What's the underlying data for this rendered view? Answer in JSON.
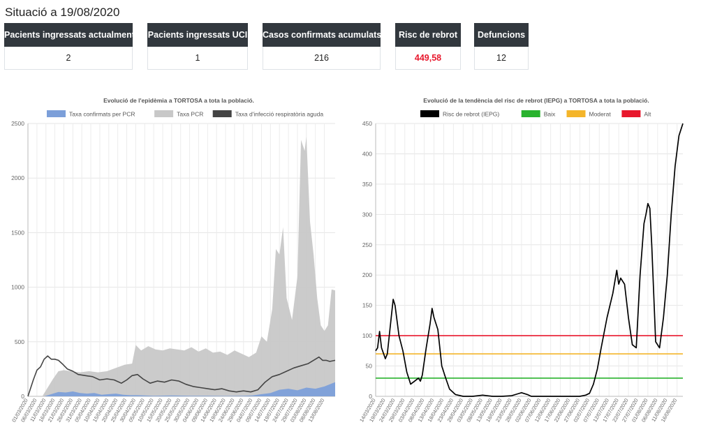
{
  "page_title": "Situació a 19/08/2020",
  "cards": [
    {
      "label": "Pacients ingressats actualment",
      "value": "2"
    },
    {
      "label": "Pacients ingressats UCI",
      "value": "1"
    },
    {
      "label": "Casos confirmats acumulats",
      "value": "216"
    },
    {
      "label": "Risc de rebrot",
      "value": "449,58"
    },
    {
      "label": "Defuncions",
      "value": "12"
    }
  ],
  "colors": {
    "card_header": "#32383e",
    "risk_value": "#e8172c"
  },
  "chart_data": [
    {
      "type": "area",
      "title": "Evolució de l'epidèmia a TORTOSA a tota la població.",
      "legend": [
        {
          "name": "Taxa confirmats per PCR",
          "color": "#7c9fd9"
        },
        {
          "name": "Taxa PCR",
          "color": "#c8c8c8"
        },
        {
          "name": "Taxa d'infecció respiratòria aguda",
          "color": "#444444"
        }
      ],
      "legend_position": "top",
      "grid": true,
      "ylim": [
        0,
        2500
      ],
      "y_ticks": [
        0,
        500,
        1000,
        1500,
        2000,
        2500
      ],
      "x_tick_labels": [
        "01/03/2020",
        "06/03/2020",
        "11/03/2020",
        "16/03/2020",
        "21/03/2020",
        "26/03/2020",
        "31/03/2020",
        "05/04/2020",
        "10/04/2020",
        "15/04/2020",
        "20/04/2020",
        "25/04/2020",
        "30/04/2020",
        "05/05/2020",
        "10/05/2020",
        "15/05/2020",
        "20/05/2020",
        "25/05/2020",
        "30/05/2020",
        "04/06/2020",
        "09/06/2020",
        "14/06/2020",
        "19/06/2020",
        "24/06/2020",
        "29/06/2020",
        "04/07/2020",
        "09/07/2020",
        "14/07/2020",
        "19/07/2020",
        "24/07/2020",
        "29/07/2020",
        "03/08/2020",
        "08/08/2020",
        "13/08/2020"
      ],
      "x_start": "01/03/2020",
      "x_end": "19/08/2020",
      "series": [
        {
          "name": "Taxa PCR",
          "style": "area",
          "points": [
            [
              "01/03/2020",
              0
            ],
            [
              "05/03/2020",
              0
            ],
            [
              "09/03/2020",
              0
            ],
            [
              "12/03/2020",
              80
            ],
            [
              "15/03/2020",
              160
            ],
            [
              "18/03/2020",
              230
            ],
            [
              "21/03/2020",
              240
            ],
            [
              "25/03/2020",
              230
            ],
            [
              "30/03/2020",
              220
            ],
            [
              "04/04/2020",
              230
            ],
            [
              "09/04/2020",
              220
            ],
            [
              "14/04/2020",
              230
            ],
            [
              "19/04/2020",
              260
            ],
            [
              "24/04/2020",
              290
            ],
            [
              "28/04/2020",
              300
            ],
            [
              "30/04/2020",
              470
            ],
            [
              "03/05/2020",
              420
            ],
            [
              "07/05/2020",
              460
            ],
            [
              "11/05/2020",
              430
            ],
            [
              "15/05/2020",
              420
            ],
            [
              "19/05/2020",
              440
            ],
            [
              "23/05/2020",
              430
            ],
            [
              "27/05/2020",
              420
            ],
            [
              "31/05/2020",
              450
            ],
            [
              "04/06/2020",
              410
            ],
            [
              "08/06/2020",
              440
            ],
            [
              "12/06/2020",
              400
            ],
            [
              "16/06/2020",
              410
            ],
            [
              "20/06/2020",
              380
            ],
            [
              "24/06/2020",
              420
            ],
            [
              "28/06/2020",
              390
            ],
            [
              "02/07/2020",
              360
            ],
            [
              "06/07/2020",
              400
            ],
            [
              "09/07/2020",
              550
            ],
            [
              "12/07/2020",
              500
            ],
            [
              "15/07/2020",
              800
            ],
            [
              "17/07/2020",
              1350
            ],
            [
              "19/07/2020",
              1300
            ],
            [
              "21/07/2020",
              1550
            ],
            [
              "23/07/2020",
              900
            ],
            [
              "26/07/2020",
              700
            ],
            [
              "29/07/2020",
              1100
            ],
            [
              "31/07/2020",
              2350
            ],
            [
              "02/08/2020",
              2250
            ],
            [
              "03/08/2020",
              2380
            ],
            [
              "05/08/2020",
              1600
            ],
            [
              "07/08/2020",
              1300
            ],
            [
              "09/08/2020",
              900
            ],
            [
              "11/08/2020",
              650
            ],
            [
              "13/08/2020",
              600
            ],
            [
              "15/08/2020",
              650
            ],
            [
              "17/08/2020",
              980
            ],
            [
              "19/08/2020",
              970
            ]
          ]
        },
        {
          "name": "Taxa confirmats per PCR",
          "style": "area",
          "points": [
            [
              "01/03/2020",
              0
            ],
            [
              "10/03/2020",
              0
            ],
            [
              "14/03/2020",
              20
            ],
            [
              "18/03/2020",
              40
            ],
            [
              "22/03/2020",
              35
            ],
            [
              "26/03/2020",
              45
            ],
            [
              "30/03/2020",
              30
            ],
            [
              "03/04/2020",
              25
            ],
            [
              "07/04/2020",
              30
            ],
            [
              "11/04/2020",
              15
            ],
            [
              "15/04/2020",
              20
            ],
            [
              "19/04/2020",
              25
            ],
            [
              "23/04/2020",
              15
            ],
            [
              "27/04/2020",
              10
            ],
            [
              "01/05/2020",
              10
            ],
            [
              "10/05/2020",
              5
            ],
            [
              "20/05/2020",
              8
            ],
            [
              "30/05/2020",
              5
            ],
            [
              "09/06/2020",
              5
            ],
            [
              "19/06/2020",
              3
            ],
            [
              "29/06/2020",
              5
            ],
            [
              "04/07/2020",
              8
            ],
            [
              "09/07/2020",
              20
            ],
            [
              "14/07/2020",
              30
            ],
            [
              "19/07/2020",
              60
            ],
            [
              "24/07/2020",
              70
            ],
            [
              "29/07/2020",
              55
            ],
            [
              "03/08/2020",
              80
            ],
            [
              "08/08/2020",
              70
            ],
            [
              "13/08/2020",
              90
            ],
            [
              "16/08/2020",
              110
            ],
            [
              "19/08/2020",
              130
            ]
          ]
        },
        {
          "name": "Taxa d'infecció respiratòria aguda",
          "style": "line",
          "points": [
            [
              "01/03/2020",
              0
            ],
            [
              "04/03/2020",
              150
            ],
            [
              "06/03/2020",
              240
            ],
            [
              "08/03/2020",
              270
            ],
            [
              "10/03/2020",
              340
            ],
            [
              "12/03/2020",
              370
            ],
            [
              "14/03/2020",
              340
            ],
            [
              "16/03/2020",
              340
            ],
            [
              "18/03/2020",
              330
            ],
            [
              "20/03/2020",
              300
            ],
            [
              "23/03/2020",
              250
            ],
            [
              "26/03/2020",
              230
            ],
            [
              "29/03/2020",
              200
            ],
            [
              "02/04/2020",
              190
            ],
            [
              "06/04/2020",
              180
            ],
            [
              "10/04/2020",
              150
            ],
            [
              "14/04/2020",
              160
            ],
            [
              "18/04/2020",
              150
            ],
            [
              "22/04/2020",
              120
            ],
            [
              "25/04/2020",
              150
            ],
            [
              "28/04/2020",
              190
            ],
            [
              "01/05/2020",
              200
            ],
            [
              "04/05/2020",
              160
            ],
            [
              "08/05/2020",
              120
            ],
            [
              "12/05/2020",
              140
            ],
            [
              "16/05/2020",
              130
            ],
            [
              "20/05/2020",
              150
            ],
            [
              "24/05/2020",
              140
            ],
            [
              "28/05/2020",
              110
            ],
            [
              "01/06/2020",
              90
            ],
            [
              "05/06/2020",
              80
            ],
            [
              "09/06/2020",
              70
            ],
            [
              "13/06/2020",
              60
            ],
            [
              "17/06/2020",
              70
            ],
            [
              "21/06/2020",
              50
            ],
            [
              "25/06/2020",
              40
            ],
            [
              "29/06/2020",
              50
            ],
            [
              "03/07/2020",
              40
            ],
            [
              "07/07/2020",
              60
            ],
            [
              "11/07/2020",
              130
            ],
            [
              "15/07/2020",
              180
            ],
            [
              "19/07/2020",
              200
            ],
            [
              "23/07/2020",
              230
            ],
            [
              "27/07/2020",
              260
            ],
            [
              "31/07/2020",
              280
            ],
            [
              "04/08/2020",
              300
            ],
            [
              "08/08/2020",
              340
            ],
            [
              "10/08/2020",
              360
            ],
            [
              "12/08/2020",
              330
            ],
            [
              "14/08/2020",
              330
            ],
            [
              "16/08/2020",
              320
            ],
            [
              "19/08/2020",
              330
            ]
          ]
        }
      ]
    },
    {
      "type": "line",
      "title": "Evolució de la tendència del risc de rebrot (IEPG) a TORTOSA a tota la població.",
      "legend": [
        {
          "name": "Risc de rebrot (IEPG)",
          "color": "#000000"
        },
        {
          "name": "Baix",
          "color": "#29b32e"
        },
        {
          "name": "Moderat",
          "color": "#f4b52a"
        },
        {
          "name": "Alt",
          "color": "#e8172c"
        }
      ],
      "legend_position": "top",
      "grid": true,
      "ylim": [
        0,
        450
      ],
      "y_ticks": [
        0,
        50,
        100,
        150,
        200,
        250,
        300,
        350,
        400,
        450
      ],
      "x_tick_labels": [
        "14/03/2020",
        "19/03/2020",
        "24/03/2020",
        "29/03/2020",
        "03/04/2020",
        "08/04/2020",
        "13/04/2020",
        "18/04/2020",
        "23/04/2020",
        "28/04/2020",
        "03/05/2020",
        "08/05/2020",
        "13/05/2020",
        "18/05/2020",
        "23/05/2020",
        "28/05/2020",
        "02/06/2020",
        "07/06/2020",
        "12/06/2020",
        "17/06/2020",
        "22/06/2020",
        "27/06/2020",
        "02/07/2020",
        "07/07/2020",
        "12/07/2020",
        "17/07/2020",
        "22/07/2020",
        "27/07/2020",
        "01/08/2020",
        "06/08/2020",
        "11/08/2020",
        "16/08/2020"
      ],
      "x_start": "14/03/2020",
      "x_end": "19/08/2020",
      "thresholds": [
        {
          "name": "Baix",
          "value": 30
        },
        {
          "name": "Moderat",
          "value": 70
        },
        {
          "name": "Alt",
          "value": 100
        }
      ],
      "series": [
        {
          "name": "Risc de rebrot (IEPG)",
          "points": [
            [
              "14/03/2020",
              75
            ],
            [
              "15/03/2020",
              80
            ],
            [
              "16/03/2020",
              107
            ],
            [
              "17/03/2020",
              80
            ],
            [
              "19/03/2020",
              62
            ],
            [
              "20/03/2020",
              70
            ],
            [
              "22/03/2020",
              130
            ],
            [
              "23/03/2020",
              160
            ],
            [
              "24/03/2020",
              150
            ],
            [
              "26/03/2020",
              100
            ],
            [
              "28/03/2020",
              75
            ],
            [
              "30/03/2020",
              40
            ],
            [
              "01/04/2020",
              20
            ],
            [
              "03/04/2020",
              25
            ],
            [
              "05/04/2020",
              30
            ],
            [
              "06/04/2020",
              25
            ],
            [
              "07/04/2020",
              35
            ],
            [
              "09/04/2020",
              80
            ],
            [
              "11/04/2020",
              120
            ],
            [
              "12/04/2020",
              145
            ],
            [
              "13/04/2020",
              130
            ],
            [
              "15/04/2020",
              110
            ],
            [
              "17/04/2020",
              50
            ],
            [
              "19/04/2020",
              30
            ],
            [
              "21/04/2020",
              12
            ],
            [
              "24/04/2020",
              3
            ],
            [
              "28/04/2020",
              0
            ],
            [
              "03/05/2020",
              0
            ],
            [
              "08/05/2020",
              2
            ],
            [
              "13/05/2020",
              0
            ],
            [
              "18/05/2020",
              0
            ],
            [
              "23/05/2020",
              1
            ],
            [
              "26/05/2020",
              4
            ],
            [
              "28/05/2020",
              6
            ],
            [
              "31/05/2020",
              3
            ],
            [
              "02/06/2020",
              0
            ],
            [
              "07/06/2020",
              0
            ],
            [
              "12/06/2020",
              0
            ],
            [
              "17/06/2020",
              0
            ],
            [
              "22/06/2020",
              0
            ],
            [
              "27/06/2020",
              0
            ],
            [
              "30/06/2020",
              2
            ],
            [
              "02/07/2020",
              5
            ],
            [
              "04/07/2020",
              20
            ],
            [
              "06/07/2020",
              45
            ],
            [
              "08/07/2020",
              80
            ],
            [
              "11/07/2020",
              130
            ],
            [
              "14/07/2020",
              170
            ],
            [
              "16/07/2020",
              208
            ],
            [
              "17/07/2020",
              185
            ],
            [
              "18/07/2020",
              195
            ],
            [
              "20/07/2020",
              185
            ],
            [
              "22/07/2020",
              130
            ],
            [
              "24/07/2020",
              85
            ],
            [
              "26/07/2020",
              80
            ],
            [
              "28/07/2020",
              200
            ],
            [
              "30/07/2020",
              285
            ],
            [
              "31/07/2020",
              300
            ],
            [
              "01/08/2020",
              318
            ],
            [
              "02/08/2020",
              310
            ],
            [
              "03/08/2020",
              250
            ],
            [
              "05/08/2020",
              90
            ],
            [
              "07/08/2020",
              80
            ],
            [
              "09/08/2020",
              130
            ],
            [
              "11/08/2020",
              200
            ],
            [
              "13/08/2020",
              300
            ],
            [
              "15/08/2020",
              380
            ],
            [
              "17/08/2020",
              430
            ],
            [
              "19/08/2020",
              450
            ]
          ]
        }
      ]
    }
  ]
}
